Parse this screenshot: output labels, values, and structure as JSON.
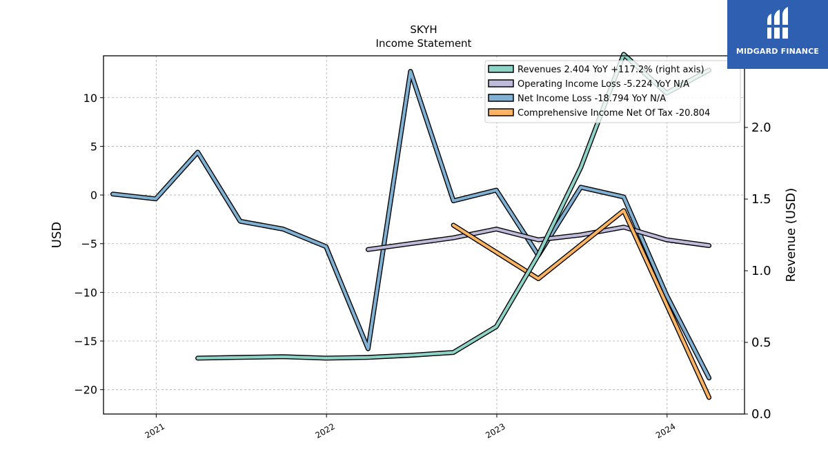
{
  "chart_data": {
    "type": "line",
    "title": "SKYH",
    "subtitle": "Income Statement",
    "ylabel": "USD",
    "y2label": "Revenue (USD)",
    "xlabel": "",
    "ylim": [
      -22.5,
      14.3
    ],
    "y2lim": [
      0.0,
      2.5
    ],
    "xlim": [
      "2020-09-10",
      "2024-06-15"
    ],
    "yticks": [
      10,
      5,
      0,
      -5,
      -10,
      -15,
      -20
    ],
    "y2ticks": [
      0.0,
      0.5,
      1.0,
      1.5,
      2.0,
      2.5
    ],
    "xticks": [
      "2021",
      "2022",
      "2023",
      "2024"
    ],
    "grid": true,
    "legend_position": "upper right",
    "series": [
      {
        "name": "Revenues  2.404 YoY +117.2% (right axis)",
        "axis": "right",
        "color": "#8dd3c7",
        "x": [
          "2021-03-31",
          "2021-06-30",
          "2021-09-30",
          "2021-12-31",
          "2022-03-31",
          "2022-06-30",
          "2022-09-30",
          "2022-12-31",
          "2023-03-31",
          "2023-06-30",
          "2023-09-30",
          "2023-12-31",
          "2024-03-31"
        ],
        "y": [
          0.39,
          0.395,
          0.4,
          0.39,
          0.395,
          0.41,
          0.43,
          0.61,
          1.11,
          1.72,
          2.51,
          2.24,
          2.4
        ]
      },
      {
        "name": "Operating Income Loss  -5.224 YoY N/A",
        "axis": "left",
        "color": "#bebada",
        "x": [
          "2022-03-31",
          "2022-06-30",
          "2022-09-30",
          "2022-12-31",
          "2023-03-31",
          "2023-06-30",
          "2023-09-30",
          "2023-12-31",
          "2024-03-31"
        ],
        "y": [
          -5.6,
          -5.0,
          -4.4,
          -3.5,
          -4.6,
          -4.1,
          -3.3,
          -4.6,
          -5.2
        ]
      },
      {
        "name": "Net Income Loss  -18.794 YoY N/A",
        "axis": "left",
        "color": "#80b1d3",
        "x": [
          "2020-09-30",
          "2020-12-31",
          "2021-03-31",
          "2021-06-30",
          "2021-09-30",
          "2021-12-31",
          "2022-03-31",
          "2022-06-30",
          "2022-09-30",
          "2022-12-31",
          "2023-03-31",
          "2023-06-30",
          "2023-09-30",
          "2023-12-31",
          "2024-03-31"
        ],
        "y": [
          0.1,
          -0.4,
          4.4,
          -2.7,
          -3.5,
          -5.3,
          -15.8,
          12.7,
          -0.6,
          0.5,
          -6.2,
          0.8,
          -0.2,
          -10.3,
          -18.8
        ]
      },
      {
        "name": "Comprehensive Income Net Of Tax  -20.804",
        "axis": "left",
        "color": "#fdb462",
        "x": [
          "2022-09-30",
          "2023-03-31",
          "2023-09-30",
          "2024-03-31"
        ],
        "y": [
          -3.1,
          -8.6,
          -1.6,
          -20.8
        ]
      }
    ]
  },
  "branding": {
    "logo_text": "MIDGARD FINANCE",
    "logo_bg": "#2f5fb0"
  }
}
